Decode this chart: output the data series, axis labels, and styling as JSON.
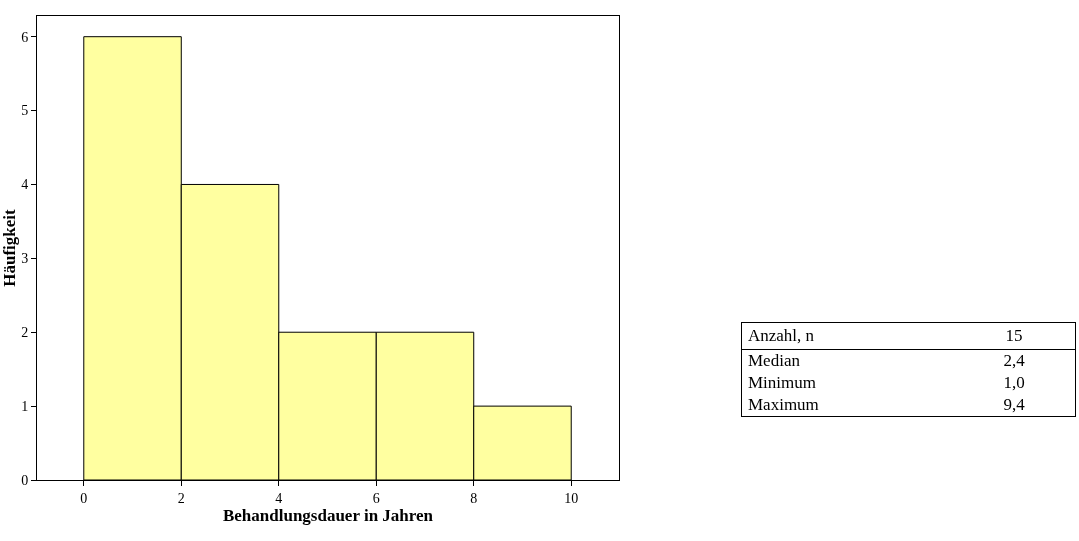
{
  "chart_data": [
    {
      "type": "histogram",
      "xlabel": "Behandlungsdauer in Jahren",
      "ylabel": "Häufigkeit",
      "bins": [
        0,
        2,
        4,
        6,
        8,
        10
      ],
      "values": [
        6,
        4,
        2,
        2,
        1
      ],
      "color": "#ffffa0",
      "xlim": [
        -0.96,
        10.98
      ],
      "ylim": [
        0,
        6.28
      ],
      "xticks": [
        0,
        2,
        4,
        6,
        8,
        10
      ],
      "yticks": [
        0,
        1,
        2,
        3,
        4,
        5,
        6
      ],
      "grid": false
    },
    {
      "type": "other",
      "categories": [
        "Anzahl, n",
        "Median",
        "Minimum",
        "Maximum"
      ],
      "value_labels": [
        "15",
        "2,4",
        "1,0",
        "9,4"
      ]
    }
  ]
}
